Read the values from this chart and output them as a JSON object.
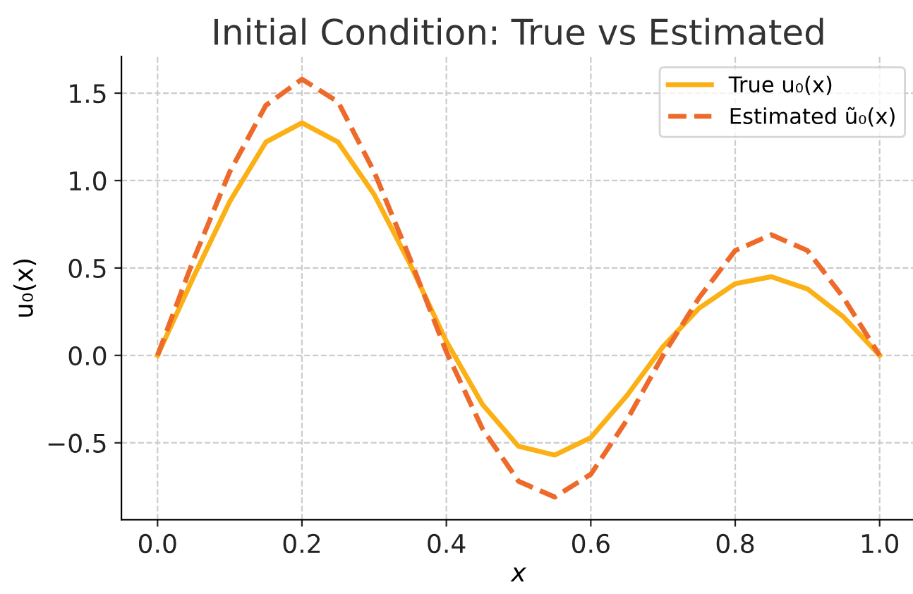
{
  "chart_data": {
    "type": "line",
    "title": "Initial Condition: True vs Estimated",
    "xlabel": "x",
    "ylabel": "u₀(x)",
    "x": [
      0,
      0.05,
      0.1,
      0.15,
      0.2,
      0.25,
      0.3,
      0.35,
      0.4,
      0.45,
      0.5,
      0.55,
      0.6,
      0.65,
      0.7,
      0.75,
      0.8,
      0.85,
      0.9,
      0.95,
      1.0
    ],
    "series": [
      {
        "name": "True u₀(x)",
        "color": "#fbb116",
        "line_style": "solid",
        "values": [
          0,
          0.45,
          0.88,
          1.22,
          1.33,
          1.22,
          0.92,
          0.52,
          0.08,
          -0.28,
          -0.52,
          -0.57,
          -0.47,
          -0.23,
          0.05,
          0.27,
          0.41,
          0.45,
          0.38,
          0.22,
          0
        ]
      },
      {
        "name": "Estimated ũ₀(x)",
        "color": "#ee6a2a",
        "line_style": "dashed",
        "values": [
          0,
          0.55,
          1.05,
          1.43,
          1.58,
          1.45,
          1.05,
          0.55,
          0.02,
          -0.42,
          -0.72,
          -0.81,
          -0.68,
          -0.37,
          0.0,
          0.33,
          0.6,
          0.69,
          0.6,
          0.33,
          0
        ]
      }
    ],
    "xlim": [
      -0.05,
      1.05
    ],
    "ylim": [
      -0.94,
      1.71
    ],
    "xticks": [
      {
        "value": 0,
        "label": "0.0"
      },
      {
        "value": 0.2,
        "label": "0.2"
      },
      {
        "value": 0.4,
        "label": "0.4"
      },
      {
        "value": 0.6,
        "label": "0.6"
      },
      {
        "value": 0.8,
        "label": "0.8"
      },
      {
        "value": 1.0,
        "label": "1.0"
      }
    ],
    "yticks": [
      {
        "value": -0.5,
        "label": "−0.5"
      },
      {
        "value": 0,
        "label": "0.0"
      },
      {
        "value": 0.5,
        "label": "0.5"
      },
      {
        "value": 1.0,
        "label": "1.0"
      },
      {
        "value": 1.5,
        "label": "1.5"
      }
    ],
    "grid": true,
    "legend": "top right",
    "marker": "none"
  }
}
